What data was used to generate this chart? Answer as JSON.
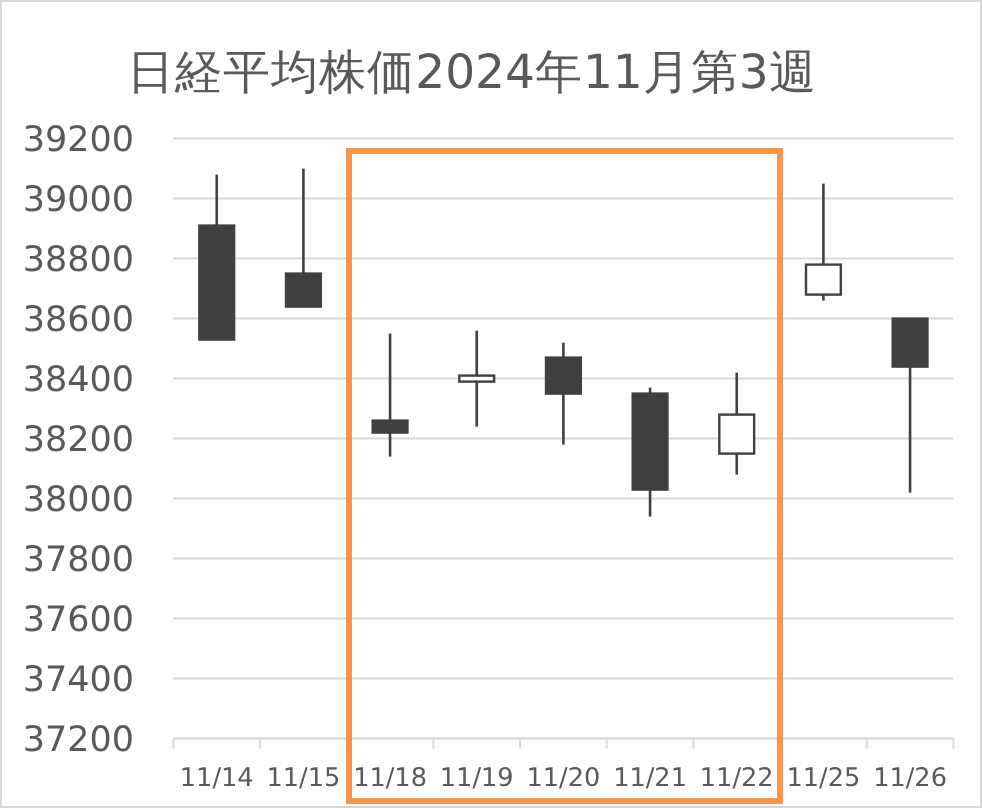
{
  "chart_data": {
    "type": "candlestick",
    "title": "日経平均株価2024年11月第3週",
    "categories": [
      "11/14",
      "11/15",
      "11/18",
      "11/19",
      "11/20",
      "11/21",
      "11/22",
      "11/25",
      "11/26"
    ],
    "ohlc": [
      [
        38910,
        39080,
        38530,
        38530
      ],
      [
        38750,
        39100,
        38640,
        38640
      ],
      [
        38260,
        38550,
        38140,
        38220
      ],
      [
        38390,
        38560,
        38240,
        38410
      ],
      [
        38470,
        38520,
        38180,
        38350
      ],
      [
        38350,
        38370,
        37940,
        38030
      ],
      [
        38150,
        38420,
        38080,
        38280
      ],
      [
        38680,
        39050,
        38660,
        38780
      ],
      [
        38600,
        38600,
        38020,
        38440
      ]
    ],
    "color": "#404040",
    "ylim": [
      37200,
      39200
    ],
    "yticks": [
      37200,
      37400,
      37600,
      37800,
      38000,
      38200,
      38400,
      38600,
      38800,
      39000,
      39200
    ],
    "grid": "y"
  }
}
